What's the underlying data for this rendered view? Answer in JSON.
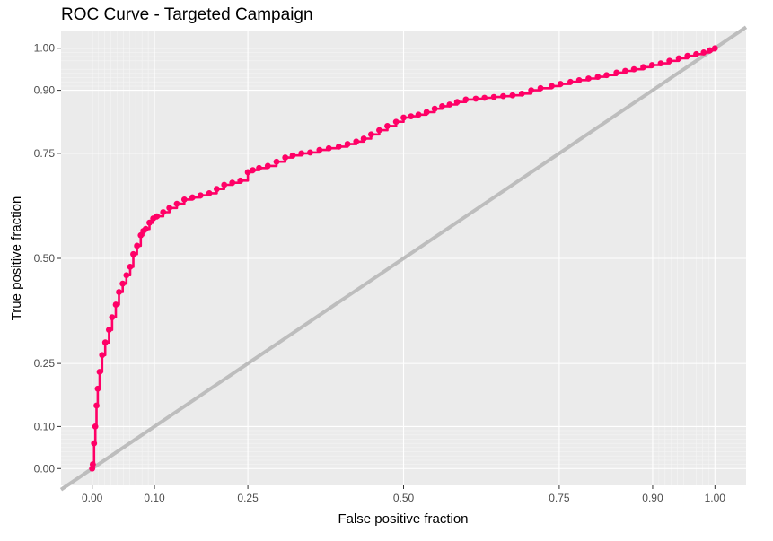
{
  "chart_data": {
    "type": "line",
    "title": "ROC Curve - Targeted Campaign",
    "xlabel": "False positive fraction",
    "ylabel": "True positive fraction",
    "xlim": [
      -0.05,
      1.05
    ],
    "ylim": [
      -0.04,
      1.04
    ],
    "x_ticks": [
      0.0,
      0.1,
      0.25,
      0.5,
      0.75,
      0.9,
      1.0
    ],
    "x_tick_labels": [
      "0.00",
      "0.10",
      "0.25",
      "0.50",
      "0.75",
      "0.90",
      "1.00"
    ],
    "y_ticks": [
      0.0,
      0.1,
      0.25,
      0.5,
      0.75,
      0.9,
      1.0
    ],
    "y_tick_labels": [
      "0.00",
      "0.10",
      "0.25",
      "0.50",
      "0.75",
      "0.90",
      "1.00"
    ],
    "minor_grid": [
      0.01,
      0.02,
      0.03,
      0.04,
      0.05,
      0.06,
      0.07,
      0.08,
      0.09,
      0.91,
      0.92,
      0.93,
      0.94,
      0.95,
      0.96,
      0.97,
      0.98,
      0.99
    ],
    "grid": true,
    "background": "#ebebeb",
    "reference_line": {
      "x": [
        -0.05,
        1.05
      ],
      "y": [
        -0.05,
        1.05
      ],
      "color": "#bdbdbd"
    },
    "series": [
      {
        "color": "#ff0066",
        "x": [
          0.0,
          0.001,
          0.003,
          0.005,
          0.007,
          0.009,
          0.012,
          0.016,
          0.021,
          0.027,
          0.032,
          0.038,
          0.043,
          0.049,
          0.055,
          0.061,
          0.066,
          0.072,
          0.078,
          0.082,
          0.086,
          0.092,
          0.098,
          0.104,
          0.114,
          0.124,
          0.136,
          0.148,
          0.161,
          0.174,
          0.188,
          0.2,
          0.212,
          0.225,
          0.238,
          0.25,
          0.258,
          0.268,
          0.282,
          0.296,
          0.31,
          0.322,
          0.336,
          0.35,
          0.365,
          0.38,
          0.396,
          0.41,
          0.424,
          0.436,
          0.448,
          0.461,
          0.474,
          0.488,
          0.5,
          0.512,
          0.524,
          0.537,
          0.55,
          0.562,
          0.574,
          0.586,
          0.6,
          0.616,
          0.63,
          0.645,
          0.66,
          0.675,
          0.69,
          0.705,
          0.72,
          0.738,
          0.752,
          0.768,
          0.782,
          0.797,
          0.812,
          0.826,
          0.842,
          0.856,
          0.87,
          0.885,
          0.899,
          0.913,
          0.927,
          0.942,
          0.956,
          0.97,
          0.982,
          0.992,
          1.0
        ],
        "y": [
          0.0,
          0.01,
          0.06,
          0.1,
          0.15,
          0.19,
          0.23,
          0.27,
          0.3,
          0.33,
          0.36,
          0.39,
          0.42,
          0.44,
          0.46,
          0.48,
          0.51,
          0.53,
          0.555,
          0.565,
          0.57,
          0.585,
          0.595,
          0.6,
          0.61,
          0.62,
          0.63,
          0.64,
          0.645,
          0.65,
          0.655,
          0.665,
          0.675,
          0.68,
          0.685,
          0.705,
          0.71,
          0.715,
          0.72,
          0.73,
          0.74,
          0.745,
          0.75,
          0.752,
          0.758,
          0.762,
          0.766,
          0.772,
          0.778,
          0.785,
          0.795,
          0.805,
          0.815,
          0.825,
          0.835,
          0.838,
          0.842,
          0.848,
          0.856,
          0.862,
          0.866,
          0.872,
          0.878,
          0.88,
          0.882,
          0.884,
          0.886,
          0.888,
          0.892,
          0.9,
          0.905,
          0.91,
          0.915,
          0.92,
          0.924,
          0.928,
          0.932,
          0.936,
          0.942,
          0.946,
          0.95,
          0.955,
          0.96,
          0.964,
          0.97,
          0.976,
          0.982,
          0.986,
          0.99,
          0.995,
          1.0
        ]
      }
    ]
  }
}
